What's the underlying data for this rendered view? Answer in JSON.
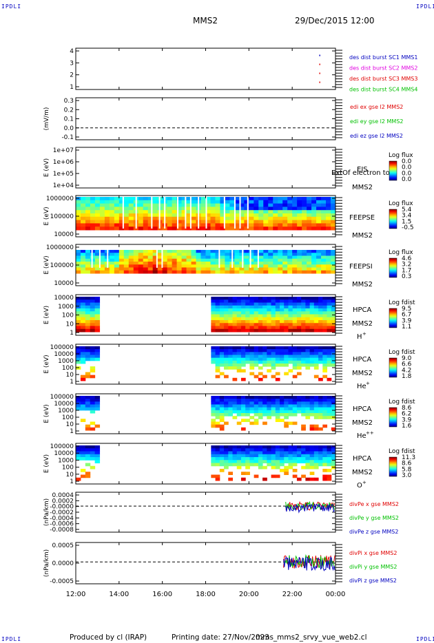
{
  "header": {
    "corner_label": "IPDLI",
    "spacecraft": "MMS2",
    "datetime": "29/Dec/2015 12:00"
  },
  "footer": {
    "produced_by": "Produced by cl (IRAP)",
    "printing_date": "Printing date: 27/Nov/2023",
    "filename": "mms_mms2_srvy_vue_web2.cl"
  },
  "x_axis": {
    "ticks": [
      "12:00",
      "14:00",
      "16:00",
      "18:00",
      "20:00",
      "22:00",
      "00:00"
    ]
  },
  "colors": {
    "red": "#e00000",
    "magenta": "#e000e0",
    "green": "#00c000",
    "blue": "#0000c0"
  },
  "chart_data": [
    {
      "type": "scatter",
      "id": "burst",
      "ylim": [
        0.5,
        4.5
      ],
      "ticks": [
        "4",
        "3",
        "2",
        "1"
      ],
      "legend": [
        {
          "text": "des dist burst SC1 MMS1",
          "color": "#0000c0"
        },
        {
          "text": "des dist burst SC2 MMS2",
          "color": "#e000e0"
        },
        {
          "text": "des dist burst SC3 MMS3",
          "color": "#e00000"
        },
        {
          "text": "des dist burst SC4 MMS4",
          "color": "#00c000"
        }
      ],
      "points": [
        {
          "x": "23:15",
          "y": 4,
          "color": "#0000c0"
        },
        {
          "x": "23:15",
          "y": 3,
          "color": "#e00000"
        },
        {
          "x": "23:15",
          "y": 2,
          "color": "#e00000"
        },
        {
          "x": "23:15",
          "y": 1,
          "color": "#e00000"
        }
      ]
    },
    {
      "type": "line",
      "id": "edi",
      "ylabel": "(mV/m)",
      "ylim": [
        -0.15,
        0.38
      ],
      "ticks": [
        "0.3",
        "0.2",
        "0.1",
        "0.0",
        "-0.1"
      ],
      "legend": [
        {
          "text": "edi ex gse l2 MMS2",
          "color": "#e00000"
        },
        {
          "text": "edi ey gse l2 MMS2",
          "color": "#00c000"
        },
        {
          "text": "edi ez gse l2 MMS2",
          "color": "#0000c0"
        }
      ]
    },
    {
      "type": "heatmap",
      "id": "eis",
      "ylabel": "E (eV)",
      "ylim": [
        "1e+04",
        "1e+07"
      ],
      "ticks": [
        "1e+07",
        "1e+06",
        "1e+05",
        "1e+04"
      ],
      "labels": [
        "EIS",
        "MMS2"
      ],
      "overlay": "ExtOf electron to",
      "cbar_title": "Log flux",
      "cbar_ticks": [
        "0.0",
        "0.0",
        "0.0",
        "0.0"
      ]
    },
    {
      "type": "heatmap",
      "id": "feepse",
      "ylabel": "E (eV)",
      "ticks": [
        "1000000",
        "100000",
        "10000"
      ],
      "labels": [
        "FEEPSE",
        "MMS2"
      ],
      "cbar_title": "Log flux",
      "cbar_ticks": [
        "5.4",
        "3.4",
        "1.5",
        "-0.5"
      ]
    },
    {
      "type": "heatmap",
      "id": "feepsi",
      "ylabel": "E (eV)",
      "ticks": [
        "1000000",
        "100000",
        "10000"
      ],
      "labels": [
        "FEEPSI",
        "MMS2"
      ],
      "cbar_title": "Log flux",
      "cbar_ticks": [
        "4.6",
        "3.2",
        "1.7",
        "0.3"
      ]
    },
    {
      "type": "heatmap",
      "id": "hpca_h",
      "ylabel": "E (eV)",
      "ticks": [
        "10000",
        "1000",
        "100",
        "10",
        "1"
      ],
      "labels": [
        "HPCA",
        "MMS2"
      ],
      "species": "H",
      "species_charge": "+",
      "cbar_title": "Log fdist",
      "cbar_ticks": [
        "9.5",
        "6.7",
        "3.9",
        "1.1"
      ]
    },
    {
      "type": "heatmap",
      "id": "hpca_he",
      "ylabel": "E (eV)",
      "ticks": [
        "100000",
        "10000",
        "1000",
        "100",
        "10",
        "1"
      ],
      "labels": [
        "HPCA",
        "MMS2"
      ],
      "species": "He",
      "species_charge": "+",
      "cbar_title": "Log fdist",
      "cbar_ticks": [
        "9.0",
        "6.6",
        "4.2",
        "1.8"
      ]
    },
    {
      "type": "heatmap",
      "id": "hpca_hepp",
      "ylabel": "E (eV)",
      "ticks": [
        "100000",
        "10000",
        "1000",
        "100",
        "10",
        "1"
      ],
      "labels": [
        "HPCA",
        "MMS2"
      ],
      "species": "He",
      "species_charge": "++",
      "cbar_title": "Log fdist",
      "cbar_ticks": [
        "8.6",
        "6.2",
        "3.9",
        "1.6"
      ]
    },
    {
      "type": "heatmap",
      "id": "hpca_o",
      "ylabel": "E (eV)",
      "ticks": [
        "100000",
        "10000",
        "1000",
        "100",
        "10",
        "1"
      ],
      "labels": [
        "HPCA",
        "MMS2"
      ],
      "species": "O",
      "species_charge": "+",
      "cbar_title": "Log fdist",
      "cbar_ticks": [
        "11.3",
        "8.6",
        "5.8",
        "3.0"
      ]
    },
    {
      "type": "line",
      "id": "divpe",
      "ylabel": "(nPa/km)",
      "ylim": [
        -0.00085,
        0.00045
      ],
      "ticks": [
        "0.0004",
        "0.0002",
        "-0.0000",
        "-0.0002",
        "-0.0004",
        "-0.0006",
        "-0.0008"
      ],
      "legend": [
        {
          "text": "divPe x gse MMS2",
          "color": "#e00000"
        },
        {
          "text": "divPe y gse MMS2",
          "color": "#00c000"
        },
        {
          "text": "divPe z gse MMS2",
          "color": "#0000c0"
        }
      ]
    },
    {
      "type": "line",
      "id": "divpi",
      "ylabel": "(nPa/km)",
      "ylim": [
        -0.0009,
        0.0008
      ],
      "ticks": [
        "0.0005",
        "0.0000",
        "-0.0005"
      ],
      "legend": [
        {
          "text": "divPi x gse MMS2",
          "color": "#e00000"
        },
        {
          "text": "divPi y gse MMS2",
          "color": "#00c000"
        },
        {
          "text": "divPi z gse MMS2",
          "color": "#0000c0"
        }
      ]
    }
  ]
}
